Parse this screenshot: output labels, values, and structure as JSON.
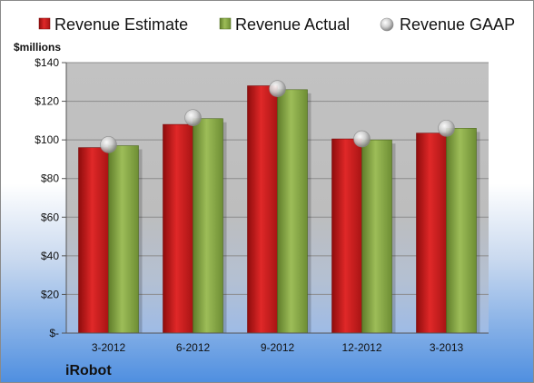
{
  "chart_data": {
    "type": "bar",
    "company": "iRobot",
    "unit_label": "$millions",
    "categories": [
      "3-2012",
      "6-2012",
      "9-2012",
      "12-2012",
      "3-2013"
    ],
    "series": [
      {
        "name": "Revenue Estimate",
        "kind": "bar",
        "color": "#d42020",
        "values": [
          96,
          108,
          128,
          100.5,
          103.5
        ]
      },
      {
        "name": "Revenue Actual",
        "kind": "bar",
        "color": "#8fb04c",
        "values": [
          97,
          111,
          126,
          100,
          106
        ]
      },
      {
        "name": "Revenue GAAP",
        "kind": "marker",
        "color": "#c8c8c8",
        "values": [
          97.5,
          111.5,
          126.5,
          100.5,
          106
        ]
      }
    ],
    "y_ticks": [
      {
        "value": 0,
        "label": "$-"
      },
      {
        "value": 20,
        "label": "$20"
      },
      {
        "value": 40,
        "label": "$40"
      },
      {
        "value": 60,
        "label": "$60"
      },
      {
        "value": 80,
        "label": "$80"
      },
      {
        "value": 100,
        "label": "$100"
      },
      {
        "value": 120,
        "label": "$120"
      },
      {
        "value": 140,
        "label": "$140"
      }
    ],
    "ylim": [
      0,
      140
    ],
    "grid": true,
    "legend_position": "top"
  }
}
